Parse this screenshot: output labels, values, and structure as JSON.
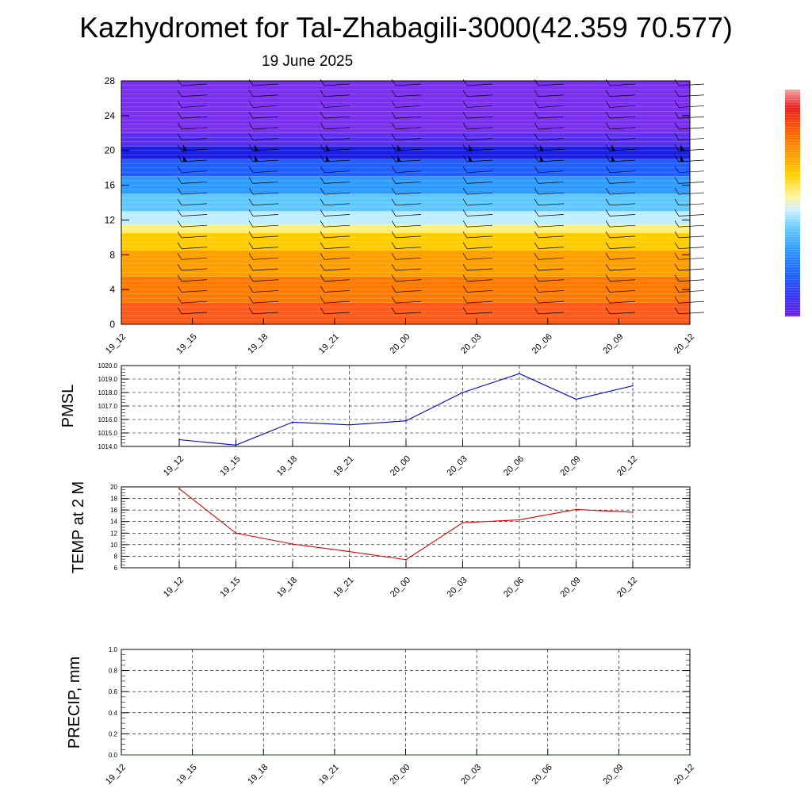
{
  "header": {
    "title": "Kazhydromet for Tal-Zhabagili-3000(42.359 70.577)",
    "date": "19 June 2025"
  },
  "colors": {
    "pmsl_line": "#0000cc",
    "temp_line": "#dd0000",
    "precip_line": "#006400",
    "colorbar": [
      "#7b1fe0",
      "#3a2ff0",
      "#1a5cff",
      "#2f9bff",
      "#6fd0ff",
      "#cfefff",
      "#fff59a",
      "#ffd200",
      "#ff9a00",
      "#ff5a00",
      "#e81c1c",
      "#f08080"
    ]
  },
  "chart_data": [
    {
      "type": "heatmap",
      "title": "",
      "xlabel": "",
      "ylabel": "",
      "x": [
        "19_12",
        "19_15",
        "19_18",
        "19_21",
        "20_00",
        "20_03",
        "20_06",
        "20_09",
        "20_12"
      ],
      "yticks": [
        0,
        4,
        8,
        12,
        16,
        20,
        24,
        28
      ],
      "ylim": [
        0,
        28
      ],
      "color_bands": [
        {
          "from": 0,
          "to": 2.5,
          "color": "#ff5a1a"
        },
        {
          "from": 2.5,
          "to": 5.5,
          "color": "#ff7a00"
        },
        {
          "from": 5.5,
          "to": 8.5,
          "color": "#ff9f00"
        },
        {
          "from": 8.5,
          "to": 10.5,
          "color": "#ffcc00"
        },
        {
          "from": 10.5,
          "to": 11.5,
          "color": "#fff27a"
        },
        {
          "from": 11.5,
          "to": 13,
          "color": "#bfeeff"
        },
        {
          "from": 13,
          "to": 15,
          "color": "#5fc8ff"
        },
        {
          "from": 15,
          "to": 17,
          "color": "#2e9cff"
        },
        {
          "from": 17,
          "to": 19,
          "color": "#1f5eff"
        },
        {
          "from": 19,
          "to": 20.5,
          "color": "#1a1ee0"
        },
        {
          "from": 20.5,
          "to": 22,
          "color": "#5a2ff0"
        },
        {
          "from": 22,
          "to": 28,
          "color": "#7b2ff0"
        }
      ],
      "wind_barb_columns": [
        "19_15",
        "19_18",
        "19_21",
        "20_00",
        "20_03",
        "20_06",
        "20_09",
        "20_12"
      ],
      "grid": false
    },
    {
      "type": "line",
      "title": "",
      "ylabel": "PMSL",
      "xlabel": "",
      "categories": [
        "19_12",
        "19_15",
        "19_18",
        "19_21",
        "20_00",
        "20_03",
        "20_06",
        "20_09",
        "20_12"
      ],
      "yticks": [
        "1014.0",
        "1015.0",
        "1016.0",
        "1017.0",
        "1018.0",
        "1019.0",
        "1020.0"
      ],
      "ylim": [
        1014,
        1020
      ],
      "series": [
        {
          "values": [
            1014.5,
            1014.1,
            1015.8,
            1015.6,
            1015.9,
            1018.0,
            1019.4,
            1017.5,
            1018.5
          ]
        }
      ],
      "grid": true
    },
    {
      "type": "line",
      "title": "",
      "ylabel": "TEMP at 2 M",
      "xlabel": "",
      "categories": [
        "19_12",
        "19_15",
        "19_18",
        "19_21",
        "20_00",
        "20_03",
        "20_06",
        "20_09",
        "20_12"
      ],
      "yticks": [
        "6",
        "8",
        "10",
        "12",
        "14",
        "16",
        "18",
        "20"
      ],
      "ylim": [
        6,
        20
      ],
      "series": [
        {
          "values": [
            19.7,
            12.0,
            10.1,
            8.8,
            7.4,
            13.8,
            14.3,
            16.1,
            15.6
          ]
        }
      ],
      "grid": true
    },
    {
      "type": "line",
      "title": "",
      "ylabel": "PRECIP, mm",
      "xlabel": "",
      "categories": [
        "19_12",
        "19_15",
        "19_18",
        "19_21",
        "20_00",
        "20_03",
        "20_06",
        "20_09",
        "20_12"
      ],
      "yticks": [
        "0.0",
        "0.2",
        "0.4",
        "0.6",
        "0.8",
        "1.0"
      ],
      "ylim": [
        0,
        1
      ],
      "series": [
        {
          "values": [
            0,
            0,
            0,
            0,
            0,
            0,
            0,
            0,
            0
          ]
        }
      ],
      "grid": true
    }
  ]
}
